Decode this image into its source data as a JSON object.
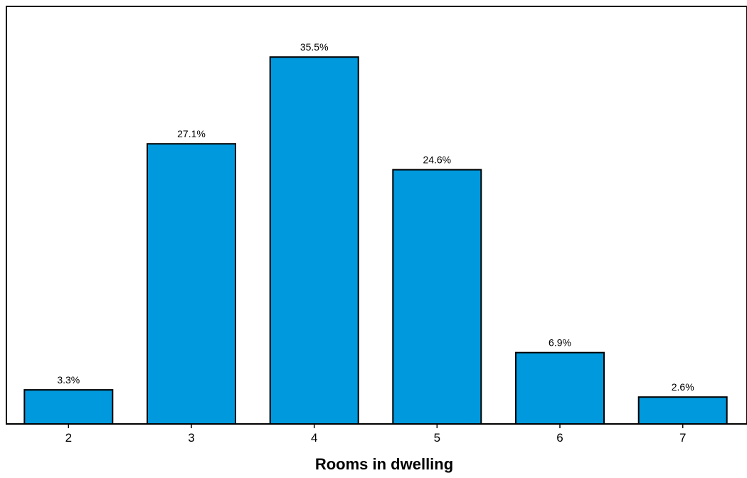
{
  "chart_data": {
    "type": "bar",
    "title": "",
    "xlabel": "Rooms in dwelling",
    "ylabel": "",
    "categories": [
      "2",
      "3",
      "4",
      "5",
      "6",
      "7"
    ],
    "values": [
      3.3,
      27.1,
      35.5,
      24.6,
      6.9,
      2.6
    ],
    "value_labels": [
      "3.3%",
      "27.1%",
      "35.5%",
      "24.6%",
      "6.9%",
      "2.6%"
    ],
    "ylim": [
      0,
      40.4
    ],
    "grid": false,
    "legend": "none",
    "colors": {
      "bar_fill": "#0099dd",
      "bar_stroke": "#000000",
      "axis": "#000000",
      "background": "#ffffff"
    }
  }
}
